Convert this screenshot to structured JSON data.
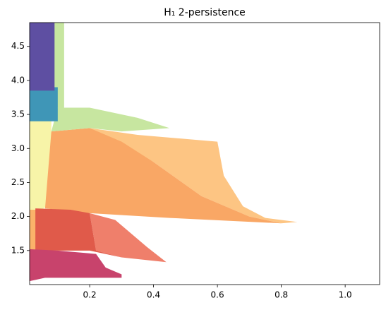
{
  "chart_data": {
    "type": "area",
    "title": "H₁ 2-persistence",
    "xlim": [
      0.012,
      1.108
    ],
    "ylim": [
      1.0,
      4.85
    ],
    "xticks": [
      0.2,
      0.4,
      0.6,
      {
        "value": 0.8,
        "label": "0.8"
      },
      {
        "value": 1,
        "label": "1.0"
      }
    ],
    "yticks": [
      1.5,
      {
        "value": 2,
        "label": "2.0"
      },
      2.5,
      {
        "value": 3,
        "label": "3.0"
      },
      3.5,
      {
        "value": 4,
        "label": "4.0"
      },
      4.5
    ],
    "regions": [
      {
        "color": "#fbb26a",
        "x": [
          0.012,
          0.012,
          0.05,
          0.06
        ],
        "y": [
          1.5,
          2.2,
          2.15,
          1.5
        ]
      },
      {
        "color": "#f7f4a8",
        "x": [
          0.012,
          0.012,
          0.08,
          0.08,
          0.05
        ],
        "y": [
          2.1,
          3.65,
          3.6,
          2.2,
          2.1
        ]
      },
      {
        "color": "#fdc583",
        "x": [
          0.2,
          0.35,
          0.6,
          0.62,
          0.68,
          0.75,
          0.85,
          0.8,
          0.7,
          0.55,
          0.4
        ],
        "y": [
          3.3,
          3.2,
          3.1,
          2.6,
          2.15,
          1.98,
          1.92,
          1.9,
          2.0,
          2.3,
          2.8
        ]
      },
      {
        "color": "#f9a765",
        "x": [
          0.06,
          0.08,
          0.2,
          0.3,
          0.4,
          0.55,
          0.7,
          0.8,
          0.45,
          0.2,
          0.06
        ],
        "y": [
          2.1,
          3.25,
          3.3,
          3.1,
          2.8,
          2.3,
          2.0,
          1.9,
          1.98,
          2.05,
          2.12
        ]
      },
      {
        "color": "#c7e6a0",
        "x": [
          0.08,
          0.1,
          0.2,
          0.35,
          0.45,
          0.3,
          0.2
        ],
        "y": [
          3.25,
          3.6,
          3.6,
          3.45,
          3.3,
          3.25,
          3.3
        ]
      },
      {
        "color": "#ef7f6b",
        "x": [
          0.2,
          0.28,
          0.33,
          0.38,
          0.44,
          0.3,
          0.22
        ],
        "y": [
          2.05,
          1.95,
          1.75,
          1.55,
          1.33,
          1.4,
          1.5
        ]
      },
      {
        "color": "#e05a4a",
        "x": [
          0.03,
          0.03,
          0.14,
          0.2,
          0.22,
          0.3,
          0.2,
          0.06
        ],
        "y": [
          1.5,
          2.12,
          2.1,
          2.05,
          1.5,
          1.4,
          1.5,
          1.5
        ]
      },
      {
        "color": "#c8436c",
        "x": [
          0.012,
          0.012,
          0.1,
          0.22,
          0.25,
          0.3,
          0.3,
          0.06
        ],
        "y": [
          1.05,
          1.52,
          1.5,
          1.45,
          1.25,
          1.15,
          1.1,
          1.1
        ]
      },
      {
        "color": "#c7e6a0",
        "x": [
          0.08,
          0.08,
          0.12,
          0.12
        ],
        "y": [
          3.6,
          4.85,
          4.85,
          3.6
        ]
      },
      {
        "color": "#3f96b7",
        "x": [
          0.012,
          0.012,
          0.1,
          0.1
        ],
        "y": [
          3.4,
          3.9,
          3.9,
          3.4
        ]
      },
      {
        "color": "#5e4fa2",
        "x": [
          0.012,
          0.012,
          0.09,
          0.09
        ],
        "y": [
          3.85,
          4.85,
          4.85,
          3.85
        ]
      }
    ]
  }
}
